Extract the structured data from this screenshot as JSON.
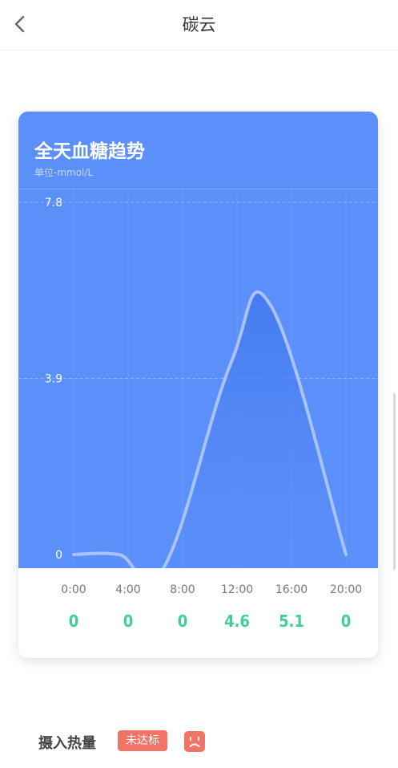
{
  "header": {
    "title": "碳云",
    "back_icon": "chevron-left-icon"
  },
  "card": {
    "title": "全天血糖趋势",
    "unit": "单位-mmol/L"
  },
  "chart_data": {
    "type": "area",
    "title": "全天血糖趋势",
    "ylabel": "单位-mmol/L",
    "y_ticks": [
      "7.8",
      "3.9",
      "0"
    ],
    "ylim": [
      0,
      7.8
    ],
    "x": [
      "0:00",
      "4:00",
      "8:00",
      "12:00",
      "16:00",
      "20:00"
    ],
    "curve": [
      {
        "hour": 0,
        "value": 0
      },
      {
        "hour": 3.3,
        "value": 0
      },
      {
        "hour": 6.6,
        "value": -0.3
      },
      {
        "hour": 11.5,
        "value": 4.2
      },
      {
        "hour": 14.5,
        "value": 5.5
      },
      {
        "hour": 20,
        "value": 0
      }
    ],
    "values": [
      "0",
      "0",
      "0",
      "4.6",
      "5.1",
      "0"
    ],
    "colors": {
      "background": "#5b8ff9",
      "area": "#4a7ff0",
      "line": "#a9c3ff",
      "value_text": "#3ecf9a"
    },
    "grid": true
  },
  "intake": {
    "label": "摄入热量",
    "status": "未达标",
    "status_icon": "sad-face-icon",
    "status_color": "#f07567"
  }
}
